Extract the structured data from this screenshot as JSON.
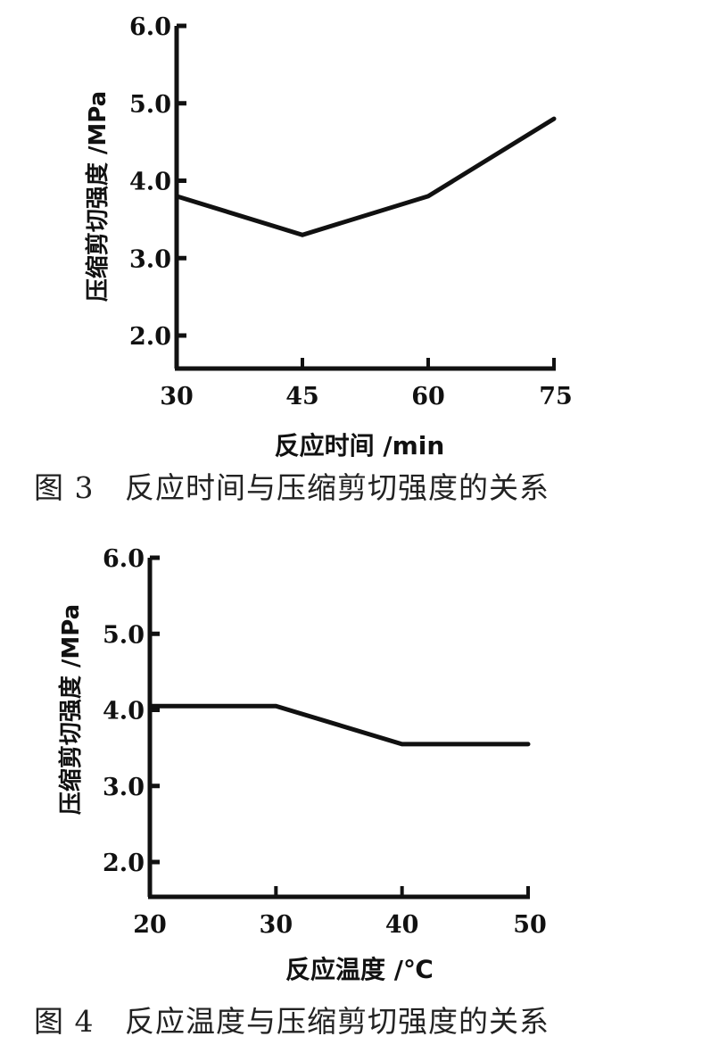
{
  "chart_data": [
    {
      "type": "line",
      "title": "图 3   反应时间与压缩剪切强度的关系",
      "xlabel": "反应时间 /min",
      "ylabel": "压缩剪切强度 /MPa",
      "x": [
        30,
        45,
        60,
        75
      ],
      "values": [
        3.8,
        3.3,
        3.8,
        4.8
      ],
      "xticks": [
        "30",
        "45",
        "60",
        "75"
      ],
      "yticks": [
        "2.0",
        "3.0",
        "4.0",
        "5.0",
        "6.0"
      ],
      "xlim": [
        30,
        75
      ],
      "ylim": [
        1.6,
        6.0
      ],
      "grid": false,
      "legend": null
    },
    {
      "type": "line",
      "title": "图 4   反应温度与压缩剪切强度的关系",
      "xlabel": "反应温度 /℃",
      "ylabel": "压缩剪切强度 /MPa",
      "x": [
        20,
        30,
        40,
        50
      ],
      "values": [
        4.05,
        4.05,
        3.55,
        3.55
      ],
      "xticks": [
        "20",
        "30",
        "40",
        "50"
      ],
      "yticks": [
        "2.0",
        "3.0",
        "4.0",
        "5.0",
        "6.0"
      ],
      "xlim": [
        20,
        50
      ],
      "ylim": [
        1.6,
        6.0
      ],
      "grid": false,
      "legend": null
    }
  ],
  "fig3": {
    "caption": "图 3   反应时间与压缩剪切强度的关系",
    "xlabel": "反应时间 /min",
    "ylabel": "压缩剪切强度 /MPa"
  },
  "fig4": {
    "caption": "图 4   反应温度与压缩剪切强度的关系",
    "xlabel": "反应温度 /℃",
    "ylabel": "压缩剪切强度 /MPa"
  }
}
